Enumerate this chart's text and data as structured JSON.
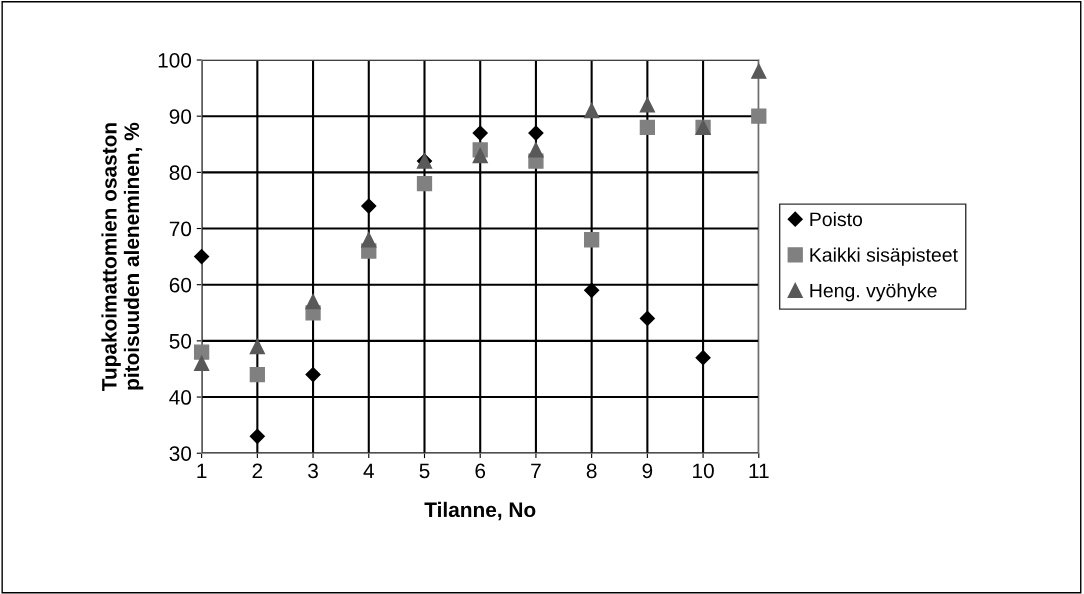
{
  "chart_data": {
    "type": "scatter",
    "xlabel": "Tilanne, No",
    "ylabel": "Tupakoimattomien osaston\npitoisuuden aleneminen, %",
    "x": [
      1,
      2,
      3,
      4,
      5,
      6,
      7,
      8,
      9,
      10,
      11
    ],
    "series": [
      {
        "name": "Poisto",
        "color": "#000000",
        "marker": "diamond",
        "values": [
          65,
          33,
          44,
          74,
          82,
          87,
          87,
          59,
          54,
          47,
          null
        ]
      },
      {
        "name": "Kaikki sisäpisteet",
        "color": "#808080",
        "marker": "square",
        "values": [
          48,
          44,
          55,
          66,
          78,
          84,
          82,
          68,
          88,
          88,
          90
        ]
      },
      {
        "name": "Heng. vyöhyke",
        "color": "#595959",
        "marker": "triangle",
        "values": [
          46,
          49,
          57,
          68,
          82,
          83,
          84,
          91,
          92,
          88,
          98
        ]
      }
    ],
    "xlim": [
      1,
      11
    ],
    "xticks": [
      1,
      2,
      3,
      4,
      5,
      6,
      7,
      8,
      9,
      10,
      11
    ],
    "ylim": [
      30,
      100
    ],
    "yticks": [
      30,
      40,
      50,
      60,
      70,
      80,
      90,
      100
    ],
    "grid": true,
    "legend": "right"
  }
}
